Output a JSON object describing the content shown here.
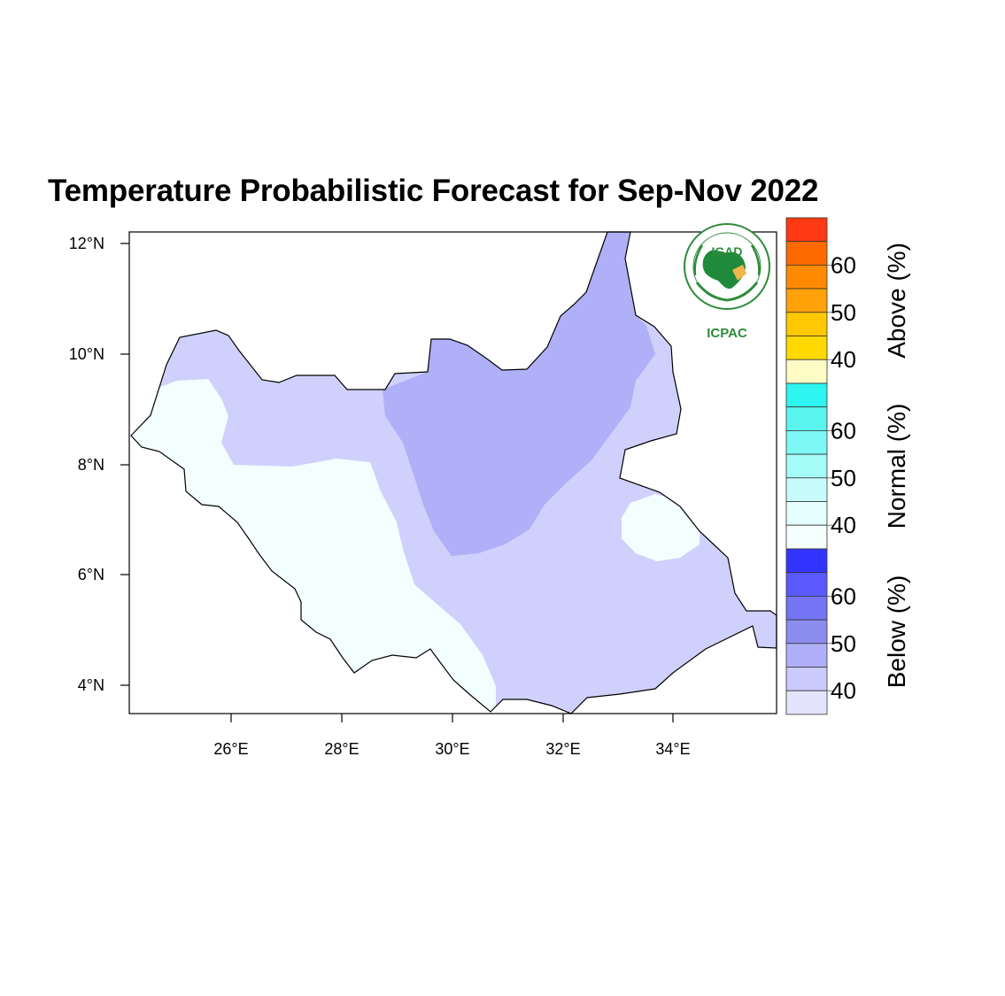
{
  "title": "Temperature Probabilistic Forecast for Sep-Nov 2022",
  "map": {
    "lat_ticks": [
      "12°N",
      "10°N",
      "8°N",
      "6°N",
      "4°N"
    ],
    "lon_ticks": [
      "26°E",
      "28°E",
      "30°E",
      "32°E",
      "34°E"
    ],
    "lat_range": [
      3.5,
      12.2
    ],
    "lon_range": [
      24.1,
      35.9
    ]
  },
  "logo": {
    "name": "IGAD",
    "org": "ICPAC",
    "ring_text": "INTERGOVERNMENTAL AUTHORITY ON DEVELOPMENT · AUTORITE INTERGOUVERNEMENTALE POUR LE DEVELOPPEMENT"
  },
  "legend": {
    "groups": [
      {
        "label": "Above (%)",
        "ticks": [
          "60",
          "50",
          "40"
        ],
        "colors": [
          "#ff3a12",
          "#ff6a00",
          "#ff8a00",
          "#ffa20a",
          "#ffc800",
          "#ffd900",
          "#fffbc4"
        ]
      },
      {
        "label": "Normal (%)",
        "ticks": [
          "60",
          "50",
          "40"
        ],
        "colors": [
          "#2ef5f0",
          "#5af5ef",
          "#7ef8f5",
          "#a4fbf8",
          "#c8fcfb",
          "#e4fefd",
          "#f4fffe"
        ]
      },
      {
        "label": "Below (%)",
        "ticks": [
          "60",
          "50",
          "40"
        ],
        "colors": [
          "#3434ff",
          "#5a5aff",
          "#7474f5",
          "#8c8cee",
          "#b0b0f8",
          "#cacafc",
          "#e4e4fc"
        ]
      }
    ]
  },
  "colors": {
    "below_45_55": "#b0b0f8",
    "below_40_45": "#d0d0fc",
    "normal_35_40": "#f2fffe",
    "below_55_60": "#7474f0"
  }
}
